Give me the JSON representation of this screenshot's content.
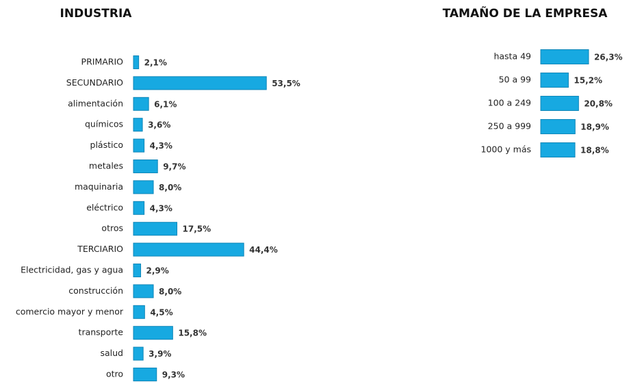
{
  "chart_data": [
    {
      "type": "bar",
      "title": "INDUSTRIA",
      "color": "#17a9e1",
      "categories": [
        "PRIMARIO",
        "SECUNDARIO",
        "alimentación",
        "químicos",
        "plástico",
        "metales",
        "maquinaria",
        "eléctrico",
        "otros",
        "TERCIARIO",
        "Electricidad, gas y agua",
        "construcción",
        "comercio mayor y menor",
        "transporte",
        "salud",
        "otro"
      ],
      "values": [
        2.1,
        53.5,
        6.1,
        3.6,
        4.3,
        9.7,
        8.0,
        4.3,
        17.5,
        44.4,
        2.9,
        8.0,
        4.5,
        15.8,
        3.9,
        9.3
      ],
      "value_labels": [
        "2,1%",
        "53,5%",
        "6,1%",
        "3,6%",
        "4,3%",
        "9,7%",
        "8,0%",
        "4,3%",
        "17,5%",
        "44,4%",
        "2,9%",
        "8,0%",
        "4,5%",
        "15,8%",
        "3,9%",
        "9,3%"
      ]
    },
    {
      "type": "bar",
      "title": "TAMAÑO DE LA EMPRESA",
      "color": "#17a9e1",
      "categories": [
        "hasta 49",
        "50 a 99",
        "100 a 249",
        "250 a 999",
        "1000 y más"
      ],
      "values": [
        26.3,
        15.2,
        20.8,
        18.9,
        18.8
      ],
      "value_labels": [
        "26,3%",
        "15,2%",
        "20,8%",
        "18,9%",
        "18,8%"
      ]
    }
  ]
}
